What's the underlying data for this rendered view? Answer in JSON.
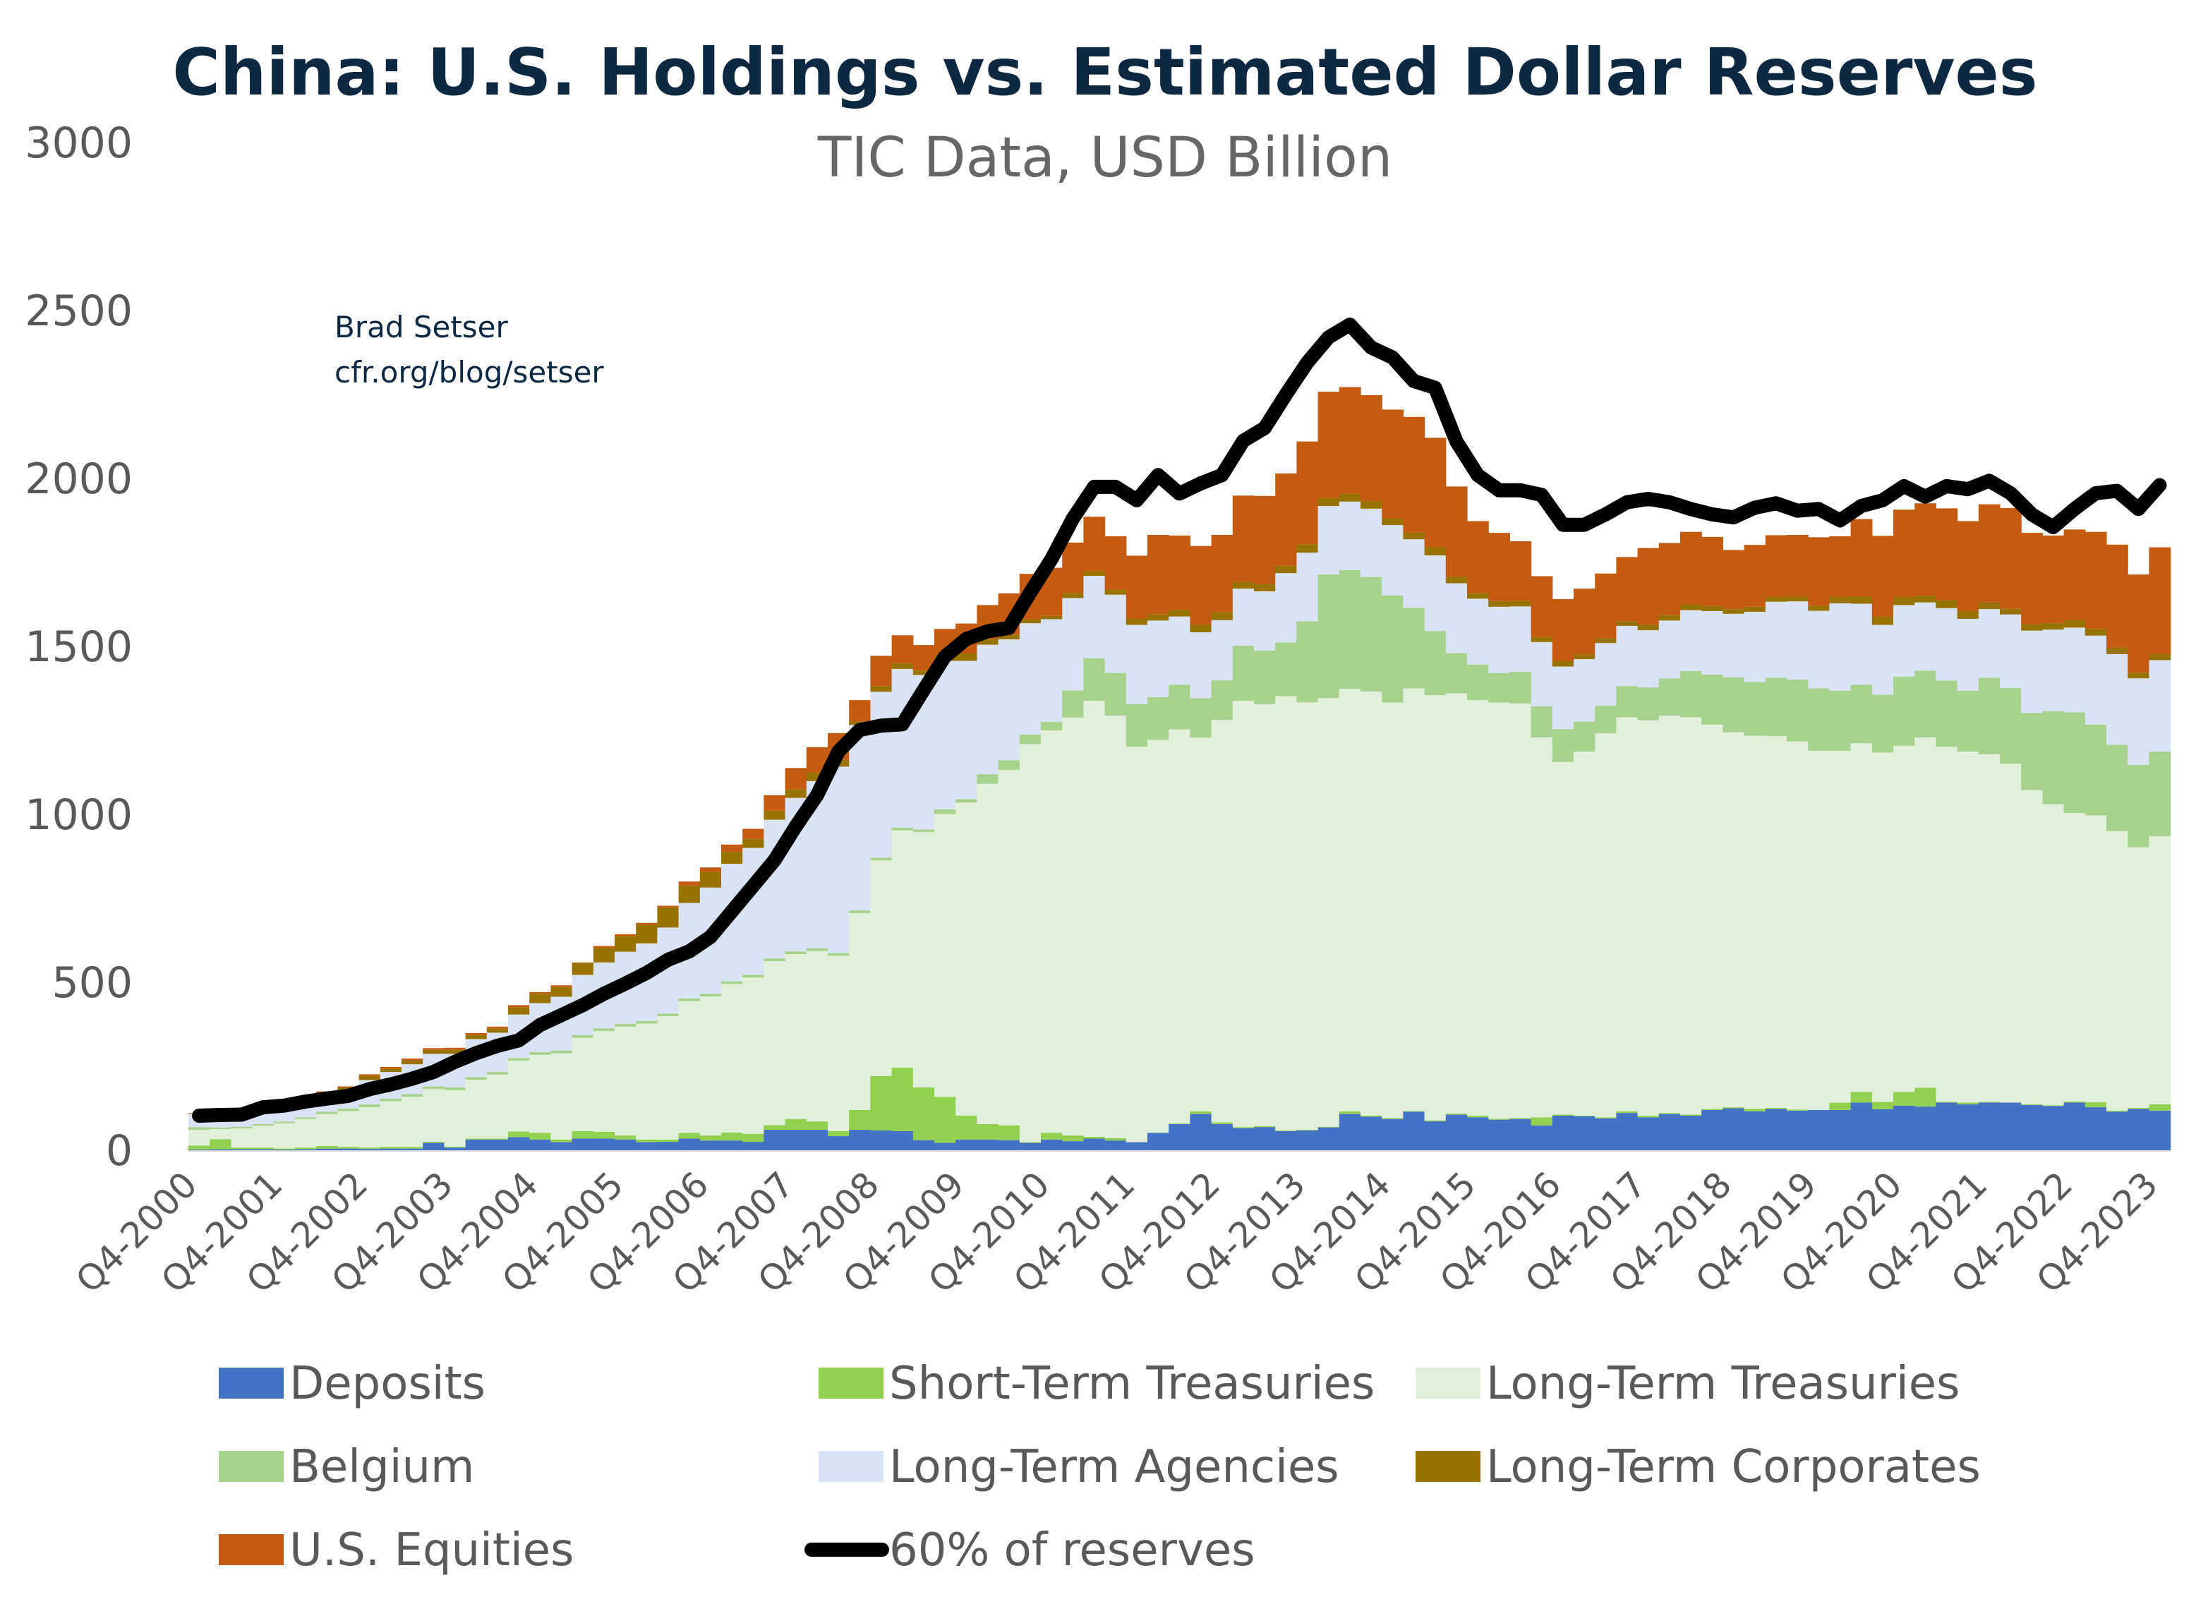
{
  "chart_data": {
    "type": "bar",
    "stacked": true,
    "title": "China: U.S. Holdings vs. Estimated Dollar Reserves",
    "subtitle": "TIC Data, USD Billion",
    "annotation": [
      "Brad Setser",
      "cfr.org/blog/setser"
    ],
    "xlabel": "",
    "ylabel": "",
    "ylim": [
      0,
      3000
    ],
    "yticks": [
      0,
      500,
      1000,
      1500,
      2000,
      2500,
      3000
    ],
    "grid": false,
    "legend_position": "bottom",
    "categories": [
      "Q4-2000",
      "Q1-2001",
      "Q2-2001",
      "Q3-2001",
      "Q4-2001",
      "Q1-2002",
      "Q2-2002",
      "Q3-2002",
      "Q4-2002",
      "Q1-2003",
      "Q2-2003",
      "Q3-2003",
      "Q4-2003",
      "Q1-2004",
      "Q2-2004",
      "Q3-2004",
      "Q4-2004",
      "Q1-2005",
      "Q2-2005",
      "Q3-2005",
      "Q4-2005",
      "Q1-2006",
      "Q2-2006",
      "Q3-2006",
      "Q4-2006",
      "Q1-2007",
      "Q2-2007",
      "Q3-2007",
      "Q4-2007",
      "Q1-2008",
      "Q2-2008",
      "Q3-2008",
      "Q4-2008",
      "Q1-2009",
      "Q2-2009",
      "Q3-2009",
      "Q4-2009",
      "Q1-2010",
      "Q2-2010",
      "Q3-2010",
      "Q4-2010",
      "Q1-2011",
      "Q2-2011",
      "Q3-2011",
      "Q4-2011",
      "Q1-2012",
      "Q2-2012",
      "Q3-2012",
      "Q4-2012",
      "Q1-2013",
      "Q2-2013",
      "Q3-2013",
      "Q4-2013",
      "Q1-2014",
      "Q2-2014",
      "Q3-2014",
      "Q4-2014",
      "Q1-2015",
      "Q2-2015",
      "Q3-2015",
      "Q4-2015",
      "Q1-2016",
      "Q2-2016",
      "Q3-2016",
      "Q4-2016",
      "Q1-2017",
      "Q2-2017",
      "Q3-2017",
      "Q4-2017",
      "Q1-2018",
      "Q2-2018",
      "Q3-2018",
      "Q4-2018",
      "Q1-2019",
      "Q2-2019",
      "Q3-2019",
      "Q4-2019",
      "Q1-2020",
      "Q2-2020",
      "Q3-2020",
      "Q4-2020",
      "Q1-2021",
      "Q2-2021",
      "Q3-2021",
      "Q4-2021",
      "Q1-2022",
      "Q2-2022",
      "Q3-2022",
      "Q4-2022",
      "Q1-2023",
      "Q2-2023",
      "Q3-2023",
      "Q4-2023"
    ],
    "series": [
      {
        "name": "Deposits",
        "color": "#4472C4",
        "values": [
          2,
          3,
          3,
          3,
          2,
          3,
          5,
          5,
          4,
          5,
          5,
          22,
          8,
          32,
          32,
          39,
          32,
          24,
          35,
          35,
          32,
          24,
          25,
          35,
          29,
          29,
          25,
          61,
          61,
          61,
          42,
          61,
          59,
          57,
          30,
          22,
          32,
          32,
          30,
          22,
          32,
          27,
          35,
          29,
          24,
          52,
          78,
          108,
          78,
          66,
          69,
          57,
          59,
          68,
          108,
          100,
          93,
          115,
          86,
          106,
          98,
          91,
          93,
          74,
          103,
          101,
          95,
          111,
          98,
          108,
          103,
          120,
          125,
          116,
          123,
          118,
          120,
          120,
          142,
          122,
          133,
          130,
          142,
          137,
          142,
          142,
          135,
          132,
          142,
          128,
          115,
          123,
          118
        ]
      },
      {
        "name": "Short-Term Treasuries",
        "color": "#92D050",
        "values": [
          12,
          30,
          5,
          5,
          3,
          5,
          8,
          5,
          4,
          5,
          5,
          3,
          3,
          3,
          3,
          17,
          20,
          8,
          22,
          20,
          12,
          8,
          7,
          17,
          15,
          24,
          24,
          14,
          32,
          25,
          15,
          59,
          162,
          189,
          157,
          137,
          71,
          46,
          44,
          2,
          20,
          17,
          5,
          7,
          0,
          0,
          2,
          8,
          5,
          3,
          3,
          2,
          2,
          2,
          8,
          3,
          3,
          2,
          3,
          3,
          5,
          3,
          3,
          24,
          3,
          2,
          3,
          5,
          5,
          3,
          3,
          3,
          3,
          7,
          3,
          3,
          0,
          22,
          32,
          22,
          41,
          56,
          2,
          5,
          2,
          0,
          2,
          2,
          3,
          15,
          3,
          3,
          19
        ]
      },
      {
        "name": "Long-Term Treasuries",
        "color": "#E2EFDA",
        "values": [
          47,
          30,
          57,
          65,
          75,
          85,
          95,
          107,
          121,
          136,
          149,
          157,
          168,
          175,
          190,
          211,
          232,
          257,
          278,
          300,
          324,
          345,
          367,
          392,
          414,
          442,
          465,
          488,
          491,
          507,
          522,
          586,
          642,
          706,
          760,
          842,
          932,
          1013,
          1058,
          1185,
          1198,
          1244,
          1298,
          1258,
          1177,
          1170,
          1173,
          1112,
          1198,
          1269,
          1256,
          1293,
          1273,
          1276,
          1258,
          1263,
          1237,
          1258,
          1266,
          1251,
          1237,
          1239,
          1234,
          1131,
          1050,
          1084,
          1143,
          1173,
          1177,
          1183,
          1183,
          1144,
          1116,
          1111,
          1107,
          1096,
          1069,
          1047,
          1038,
          1040,
          1030,
          1043,
          1057,
          1045,
          1035,
          1009,
          935,
          896,
          859,
          854,
          832,
          776,
          798
        ]
      },
      {
        "name": "Belgium",
        "color": "#A9D18E",
        "values": [
          8,
          5,
          5,
          5,
          5,
          5,
          7,
          7,
          8,
          8,
          8,
          8,
          8,
          8,
          8,
          8,
          8,
          8,
          8,
          8,
          8,
          8,
          8,
          8,
          8,
          8,
          8,
          8,
          8,
          8,
          8,
          8,
          8,
          8,
          8,
          14,
          10,
          29,
          29,
          29,
          25,
          81,
          127,
          127,
          127,
          127,
          133,
          118,
          118,
          164,
          160,
          160,
          241,
          368,
          353,
          341,
          319,
          240,
          191,
          120,
          106,
          88,
          95,
          93,
          98,
          89,
          83,
          93,
          98,
          111,
          138,
          149,
          164,
          160,
          174,
          184,
          186,
          179,
          174,
          172,
          206,
          199,
          197,
          181,
          228,
          225,
          230,
          277,
          300,
          270,
          257,
          245,
          252
        ]
      },
      {
        "name": "Long-Term Agencies",
        "color": "#DAE3F3",
        "values": [
          40,
          40,
          45,
          47,
          52,
          54,
          50,
          55,
          72,
          79,
          89,
          97,
          100,
          113,
          117,
          129,
          146,
          160,
          179,
          196,
          215,
          231,
          256,
          284,
          316,
          350,
          378,
          413,
          457,
          498,
          555,
          552,
          494,
          473,
          460,
          442,
          412,
          385,
          360,
          331,
          306,
          275,
          245,
          233,
          236,
          228,
          203,
          196,
          179,
          170,
          176,
          206,
          204,
          204,
          204,
          203,
          209,
          204,
          225,
          208,
          196,
          197,
          194,
          191,
          186,
          186,
          186,
          179,
          170,
          172,
          181,
          189,
          189,
          209,
          226,
          233,
          231,
          260,
          241,
          208,
          213,
          203,
          216,
          214,
          204,
          219,
          245,
          243,
          252,
          265,
          270,
          258,
          272
        ]
      },
      {
        "name": "Long-Term Corporates",
        "color": "#997300",
        "values": [
          2,
          2,
          3,
          3,
          3,
          3,
          7,
          8,
          12,
          10,
          12,
          12,
          13,
          13,
          13,
          22,
          28,
          29,
          37,
          44,
          47,
          56,
          60,
          52,
          47,
          35,
          27,
          27,
          25,
          25,
          20,
          10,
          17,
          17,
          13,
          14,
          22,
          17,
          14,
          12,
          10,
          15,
          14,
          15,
          19,
          19,
          20,
          22,
          24,
          20,
          22,
          22,
          25,
          24,
          24,
          22,
          20,
          20,
          24,
          20,
          17,
          17,
          17,
          15,
          17,
          14,
          15,
          14,
          17,
          17,
          17,
          15,
          14,
          15,
          14,
          14,
          15,
          19,
          22,
          24,
          24,
          20,
          24,
          24,
          20,
          17,
          19,
          20,
          22,
          20,
          19,
          17,
          17
        ]
      },
      {
        "name": "U.S. Equities",
        "color": "#C55A11",
        "values": [
          0,
          0,
          0,
          0,
          0,
          0,
          3,
          3,
          5,
          5,
          5,
          5,
          5,
          5,
          5,
          6,
          5,
          5,
          0,
          5,
          5,
          5,
          5,
          12,
          13,
          22,
          30,
          46,
          64,
          76,
          80,
          64,
          90,
          83,
          76,
          81,
          89,
          101,
          123,
          135,
          143,
          150,
          162,
          159,
          187,
          236,
          221,
          235,
          230,
          257,
          262,
          275,
          306,
          316,
          317,
          316,
          324,
          344,
          326,
          268,
          214,
          203,
          177,
          181,
          184,
          196,
          192,
          191,
          228,
          214,
          216,
          206,
          176,
          184,
          184,
          184,
          204,
          181,
          230,
          241,
          260,
          275,
          273,
          267,
          292,
          300,
          272,
          260,
          270,
          289,
          307,
          292,
          319
        ]
      }
    ],
    "line_series": {
      "name": "60% of reserves",
      "type": "line",
      "color": "#000000",
      "values": [
        103,
        105,
        106,
        128,
        133,
        145,
        154,
        162,
        182,
        196,
        213,
        233,
        263,
        289,
        311,
        327,
        373,
        402,
        432,
        466,
        496,
        528,
        567,
        592,
        635,
        711,
        787,
        863,
        964,
        1057,
        1187,
        1251,
        1264,
        1268,
        1370,
        1470,
        1522,
        1545,
        1555,
        1660,
        1760,
        1880,
        1975,
        1975,
        1935,
        2010,
        1955,
        1985,
        2010,
        2112,
        2150,
        2250,
        2345,
        2420,
        2458,
        2390,
        2360,
        2290,
        2270,
        2110,
        2010,
        1965,
        1965,
        1951,
        1862,
        1862,
        1893,
        1929,
        1939,
        1929,
        1909,
        1893,
        1884,
        1913,
        1926,
        1904,
        1909,
        1875,
        1918,
        1935,
        1977,
        1946,
        1977,
        1968,
        1993,
        1956,
        1893,
        1855,
        1909,
        1956,
        1963,
        1909,
        1980
      ]
    }
  }
}
